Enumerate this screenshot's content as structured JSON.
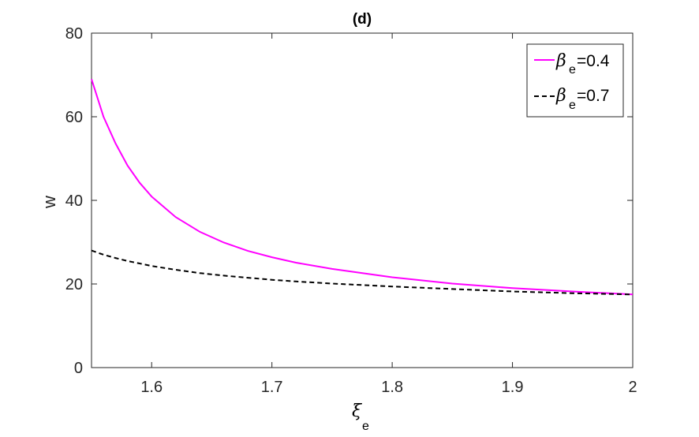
{
  "chart_data": {
    "type": "line",
    "title": "(d)",
    "xlabel_symbol": "ξ",
    "xlabel_subscript": "e",
    "ylabel": "w",
    "xlim": [
      1.55,
      2.0
    ],
    "ylim": [
      0,
      80
    ],
    "xticks": [
      1.6,
      1.7,
      1.8,
      1.9,
      2.0
    ],
    "xtick_labels": [
      "1.6",
      "1.7",
      "1.8",
      "1.9",
      "2"
    ],
    "yticks": [
      0,
      20,
      40,
      60,
      80
    ],
    "ytick_labels": [
      "0",
      "20",
      "40",
      "60",
      "80"
    ],
    "grid": false,
    "legend_position": "top-right",
    "x": [
      1.55,
      1.56,
      1.57,
      1.58,
      1.59,
      1.6,
      1.62,
      1.64,
      1.66,
      1.68,
      1.7,
      1.72,
      1.75,
      1.8,
      1.85,
      1.9,
      1.95,
      2.0
    ],
    "series": [
      {
        "name_symbol": "β",
        "name_subscript": "e",
        "name_value": "=0.4",
        "color": "#ff00ff",
        "dash": "solid",
        "values": [
          69.0,
          60.0,
          53.6,
          48.3,
          44.2,
          40.9,
          36.0,
          32.5,
          29.9,
          27.9,
          26.4,
          25.1,
          23.6,
          21.6,
          20.1,
          19.0,
          18.2,
          17.5
        ]
      },
      {
        "name_symbol": "β",
        "name_subscript": "e",
        "name_value": "=0.7",
        "color": "#000000",
        "dash": "dashed",
        "values": [
          28.0,
          27.0,
          26.2,
          25.5,
          24.9,
          24.3,
          23.4,
          22.6,
          22.0,
          21.5,
          21.0,
          20.6,
          20.1,
          19.4,
          18.8,
          18.2,
          17.8,
          17.5
        ]
      }
    ]
  }
}
